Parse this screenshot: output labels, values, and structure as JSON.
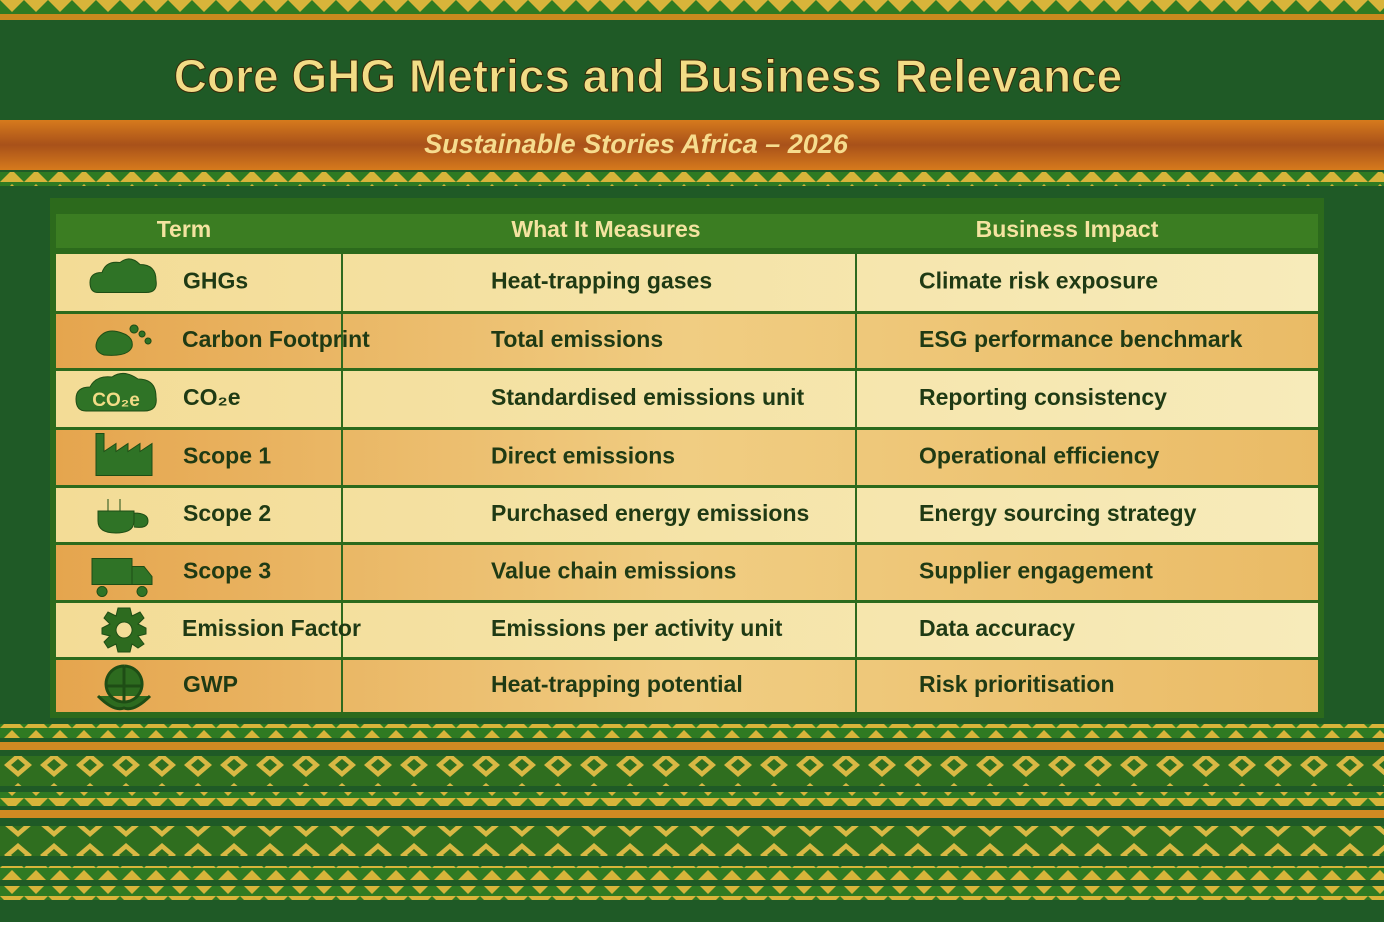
{
  "header": {
    "title": "Core GHG Metrics and Business Relevance",
    "subtitle": "Sustainable Stories Africa – 2026"
  },
  "table": {
    "columns": [
      "Term",
      "What It Measures",
      "Business Impact"
    ],
    "rows": [
      {
        "term": "GHGs",
        "measures": "Heat-trapping gases",
        "impact": "Climate risk exposure"
      },
      {
        "term": "Carbon Footprint",
        "measures": "Total emissions",
        "impact": "ESG performance benchmark"
      },
      {
        "term": "CO₂e",
        "measures": "Standardised emissions unit",
        "impact": "Reporting consistency"
      },
      {
        "term": "Scope 1",
        "measures": "Direct emissions",
        "impact": "Operational efficiency"
      },
      {
        "term": "Scope 2",
        "measures": "Purchased energy emissions",
        "impact": "Energy sourcing strategy"
      },
      {
        "term": "Scope 3",
        "measures": "Value chain emissions",
        "impact": "Supplier engagement"
      },
      {
        "term": "Emission Factor",
        "measures": "Emissions per activity unit",
        "impact": "Data accuracy"
      },
      {
        "term": "GWP",
        "measures": "Heat-trapping potential",
        "impact": "Risk prioritisation"
      }
    ]
  }
}
